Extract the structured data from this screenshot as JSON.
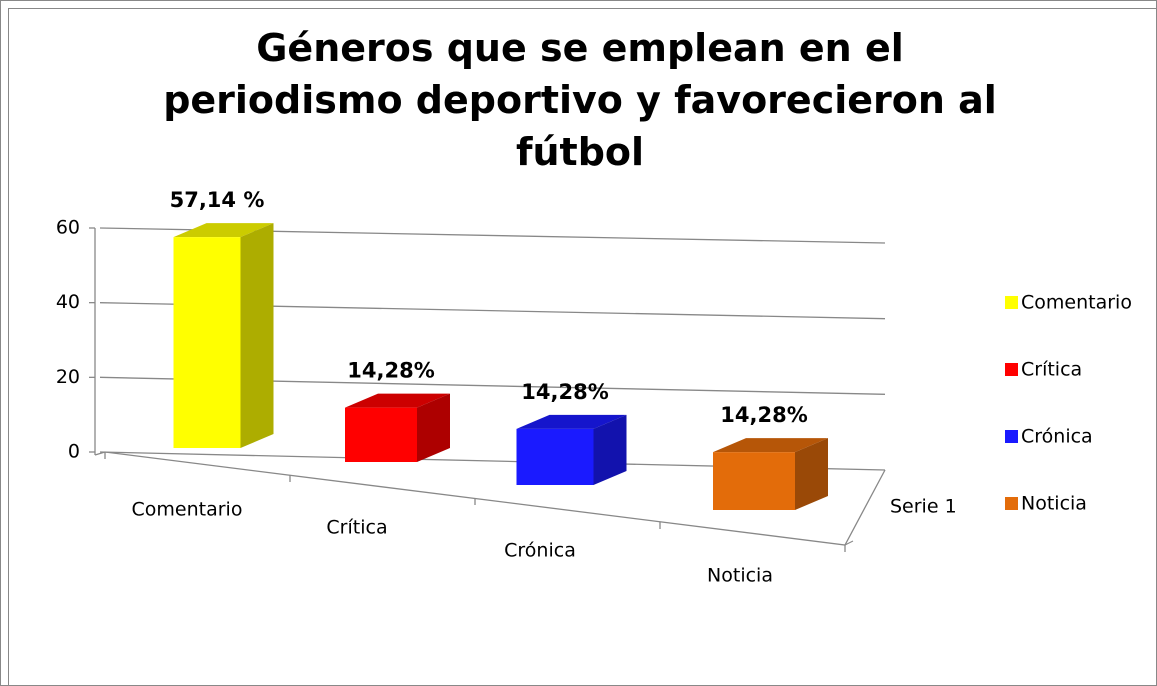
{
  "chart_data": {
    "type": "bar3d",
    "title": "Géneros que se emplean en el periodismo deportivo y favorecieron al fútbol",
    "categories": [
      "Comentario",
      "Crítica",
      "Crónica",
      "Noticia"
    ],
    "colors": [
      "#ffff00",
      "#ff0000",
      "#1a1aff",
      "#e36c0a"
    ],
    "series": [
      {
        "name": "Serie 1",
        "values": [
          57.14,
          14.28,
          14.28,
          14.28
        ],
        "value_labels": [
          "57,14 %",
          "14,28%",
          "14,28%",
          "14,28%"
        ]
      }
    ],
    "ylim": [
      0,
      60
    ],
    "yticks": [
      0,
      20,
      40,
      60
    ],
    "grid": true,
    "legend": "right"
  }
}
